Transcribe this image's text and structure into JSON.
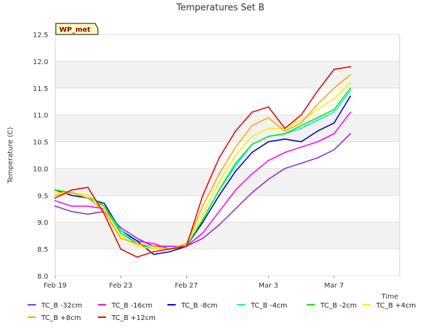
{
  "chart_data": {
    "type": "line",
    "title": "Temperatures Set B",
    "xlabel": "Time",
    "ylabel": "Temperature (C)",
    "badge": "WP_met",
    "ylim": [
      8.0,
      12.5
    ],
    "yticks": [
      "8.0",
      "8.5",
      "9.0",
      "9.5",
      "10.0",
      "10.5",
      "11.0",
      "11.5",
      "12.0",
      "12.5"
    ],
    "xlim": [
      "2024-02-19",
      "2024-03-11"
    ],
    "xticks": [
      {
        "date": "2024-02-19",
        "label": "Feb 19"
      },
      {
        "date": "2024-02-23",
        "label": "Feb 23"
      },
      {
        "date": "2024-02-27",
        "label": "Feb 27"
      },
      {
        "date": "2024-03-03",
        "label": "Mar 3"
      },
      {
        "date": "2024-03-07",
        "label": "Mar 7"
      }
    ],
    "grid": "horizontal bands",
    "legend_position": "bottom",
    "x": [
      "2024-02-19",
      "2024-02-20",
      "2024-02-21",
      "2024-02-22",
      "2024-02-23",
      "2024-02-24",
      "2024-02-25",
      "2024-02-26",
      "2024-02-27",
      "2024-02-28",
      "2024-02-29",
      "2024-03-01",
      "2024-03-02",
      "2024-03-03",
      "2024-03-04",
      "2024-03-05",
      "2024-03-06",
      "2024-03-07",
      "2024-03-08"
    ],
    "series": [
      {
        "name": "TC_B -32cm",
        "color": "#8a2be2",
        "values": [
          9.3,
          9.2,
          9.15,
          9.2,
          8.9,
          8.7,
          8.55,
          8.55,
          8.55,
          8.7,
          8.95,
          9.25,
          9.55,
          9.8,
          10.0,
          10.1,
          10.2,
          10.35,
          10.65
        ]
      },
      {
        "name": "TC_B -16cm",
        "color": "#ff00ff",
        "values": [
          9.4,
          9.3,
          9.3,
          9.25,
          8.85,
          8.65,
          8.6,
          8.5,
          8.55,
          8.8,
          9.2,
          9.6,
          9.9,
          10.15,
          10.3,
          10.4,
          10.5,
          10.65,
          11.05
        ]
      },
      {
        "name": "TC_B -8cm",
        "color": "#0000cd",
        "values": [
          9.6,
          9.5,
          9.45,
          9.35,
          8.85,
          8.65,
          8.4,
          8.45,
          8.55,
          9.0,
          9.5,
          9.95,
          10.3,
          10.5,
          10.55,
          10.5,
          10.7,
          10.85,
          11.35
        ]
      },
      {
        "name": "TC_B -4cm",
        "color": "#00e5ee",
        "values": [
          9.6,
          9.55,
          9.45,
          9.3,
          8.85,
          8.6,
          8.5,
          8.5,
          8.55,
          9.05,
          9.6,
          10.05,
          10.45,
          10.6,
          10.65,
          10.75,
          10.9,
          11.05,
          11.45
        ]
      },
      {
        "name": "TC_B -2cm",
        "color": "#00ee00",
        "values": [
          9.6,
          9.55,
          9.5,
          9.3,
          8.8,
          8.6,
          8.5,
          8.5,
          8.55,
          9.05,
          9.6,
          10.1,
          10.45,
          10.6,
          10.65,
          10.8,
          10.95,
          11.1,
          11.5
        ]
      },
      {
        "name": "TC_B +4cm",
        "color": "#ffee00",
        "values": [
          9.55,
          9.55,
          9.5,
          9.25,
          8.75,
          8.55,
          8.5,
          8.5,
          8.6,
          9.15,
          9.75,
          10.25,
          10.6,
          10.75,
          10.75,
          10.9,
          11.1,
          11.3,
          11.6
        ]
      },
      {
        "name": "TC_B +8cm",
        "color": "#ffa500",
        "values": [
          9.5,
          9.55,
          9.45,
          9.2,
          8.7,
          8.6,
          8.55,
          8.5,
          8.6,
          9.3,
          9.9,
          10.4,
          10.8,
          10.95,
          10.7,
          10.85,
          11.2,
          11.5,
          11.75
        ]
      },
      {
        "name": "TC_B +12cm",
        "color": "#ee0000",
        "values": [
          9.45,
          9.6,
          9.65,
          9.15,
          8.5,
          8.35,
          8.45,
          8.5,
          8.55,
          9.5,
          10.2,
          10.7,
          11.05,
          11.15,
          10.75,
          11.0,
          11.45,
          11.85,
          11.9
        ]
      }
    ]
  }
}
